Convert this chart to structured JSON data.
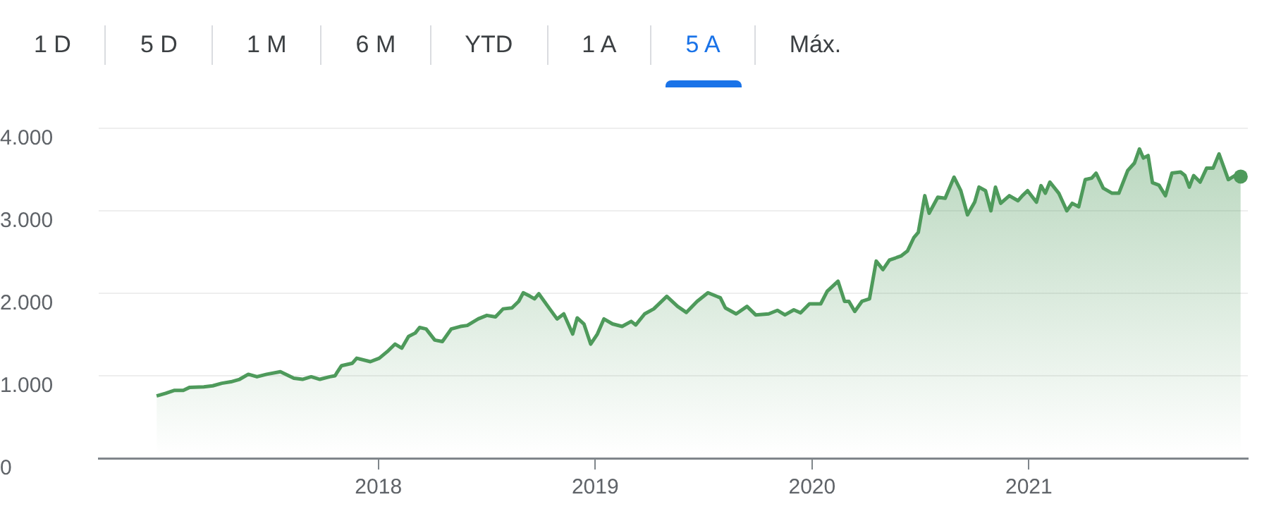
{
  "chart_data": {
    "type": "area",
    "annotations": [
      "1 D",
      "5 D",
      "1 M",
      "6 M",
      "YTD",
      "1 A",
      "5 A",
      "Máx."
    ],
    "x": [
      2016.977,
      2017.019,
      2017.06,
      2017.1,
      2017.13,
      2017.195,
      2017.236,
      2017.278,
      2017.32,
      2017.36,
      2017.4,
      2017.44,
      2017.485,
      2017.548,
      2017.61,
      2017.65,
      2017.69,
      2017.73,
      2017.776,
      2017.8,
      2017.807,
      2017.83,
      2017.88,
      2017.9,
      2017.963,
      2018.004,
      2018.046,
      2018.077,
      2018.108,
      2018.139,
      2018.17,
      2018.19,
      2018.22,
      2018.26,
      2018.295,
      2018.336,
      2018.378,
      2018.41,
      2018.46,
      2018.5,
      2018.54,
      2018.575,
      2018.616,
      2018.647,
      2018.668,
      2018.7,
      2018.72,
      2018.74,
      2018.79,
      2018.824,
      2018.855,
      2018.896,
      2018.917,
      2018.948,
      2018.979,
      2019.01,
      2019.04,
      2019.08,
      2019.124,
      2019.166,
      2019.187,
      2019.228,
      2019.27,
      2019.33,
      2019.38,
      2019.42,
      2019.47,
      2019.52,
      2019.577,
      2019.6,
      2019.65,
      2019.7,
      2019.74,
      2019.8,
      2019.84,
      2019.875,
      2019.916,
      2019.947,
      2019.988,
      2020.04,
      2020.07,
      2020.12,
      2020.15,
      2020.17,
      2020.197,
      2020.23,
      2020.265,
      2020.296,
      2020.327,
      2020.357,
      2020.41,
      2020.44,
      2020.47,
      2020.49,
      2020.52,
      2020.54,
      2020.58,
      2020.614,
      2020.655,
      2020.686,
      2020.717,
      2020.75,
      2020.77,
      2020.8,
      2020.825,
      2020.846,
      2020.87,
      2020.91,
      2020.95,
      2020.97,
      2020.994,
      2021.035,
      2021.056,
      2021.076,
      2021.097,
      2021.138,
      2021.175,
      2021.2,
      2021.23,
      2021.26,
      2021.29,
      2021.31,
      2021.343,
      2021.384,
      2021.415,
      2021.456,
      2021.487,
      2021.51,
      2021.528,
      2021.55,
      2021.57,
      2021.6,
      2021.63,
      2021.66,
      2021.7,
      2021.72,
      2021.74,
      2021.76,
      2021.79,
      2021.82,
      2021.85,
      2021.877,
      2021.92,
      2021.95,
      2021.977
    ],
    "series": [
      {
        "color": "#4e9a5b",
        "values": [
          756,
          787,
          823,
          823,
          860,
          866,
          878,
          909,
          927,
          957,
          1018,
          988,
          1018,
          1049,
          970,
          957,
          988,
          957,
          988,
          1000,
          1030,
          1122,
          1152,
          1213,
          1171,
          1213,
          1305,
          1384,
          1335,
          1476,
          1518,
          1585,
          1567,
          1433,
          1415,
          1567,
          1598,
          1610,
          1689,
          1732,
          1713,
          1811,
          1823,
          1902,
          2006,
          1963,
          1933,
          1994,
          1811,
          1689,
          1750,
          1506,
          1701,
          1628,
          1384,
          1506,
          1689,
          1628,
          1598,
          1659,
          1616,
          1750,
          1811,
          1963,
          1841,
          1768,
          1902,
          2006,
          1945,
          1823,
          1750,
          1841,
          1738,
          1750,
          1793,
          1738,
          1799,
          1762,
          1872,
          1872,
          2024,
          2146,
          1902,
          1902,
          1780,
          1902,
          1933,
          2390,
          2287,
          2403,
          2451,
          2512,
          2677,
          2738,
          3183,
          2970,
          3165,
          3152,
          3408,
          3244,
          2951,
          3104,
          3287,
          3244,
          3000,
          3287,
          3091,
          3183,
          3122,
          3183,
          3244,
          3104,
          3305,
          3213,
          3348,
          3213,
          3000,
          3091,
          3049,
          3378,
          3396,
          3457,
          3274,
          3213,
          3213,
          3488,
          3579,
          3750,
          3640,
          3670,
          3341,
          3311,
          3183,
          3457,
          3470,
          3427,
          3287,
          3427,
          3348,
          3518,
          3518,
          3689,
          3378,
          3427,
          3415
        ]
      }
    ],
    "xlim": [
      2016.71,
      2022.01
    ],
    "xticks": [
      2018,
      2019,
      2020,
      2021
    ],
    "ylim": [
      0,
      4000
    ],
    "yticks": [
      0,
      {
        "value": 1000,
        "label": "1.000"
      },
      {
        "value": 2000,
        "label": "2.000"
      },
      {
        "value": 3000,
        "label": "3.000"
      },
      {
        "value": 4000,
        "label": "4.000"
      }
    ],
    "grid": "y",
    "legend": false
  }
}
